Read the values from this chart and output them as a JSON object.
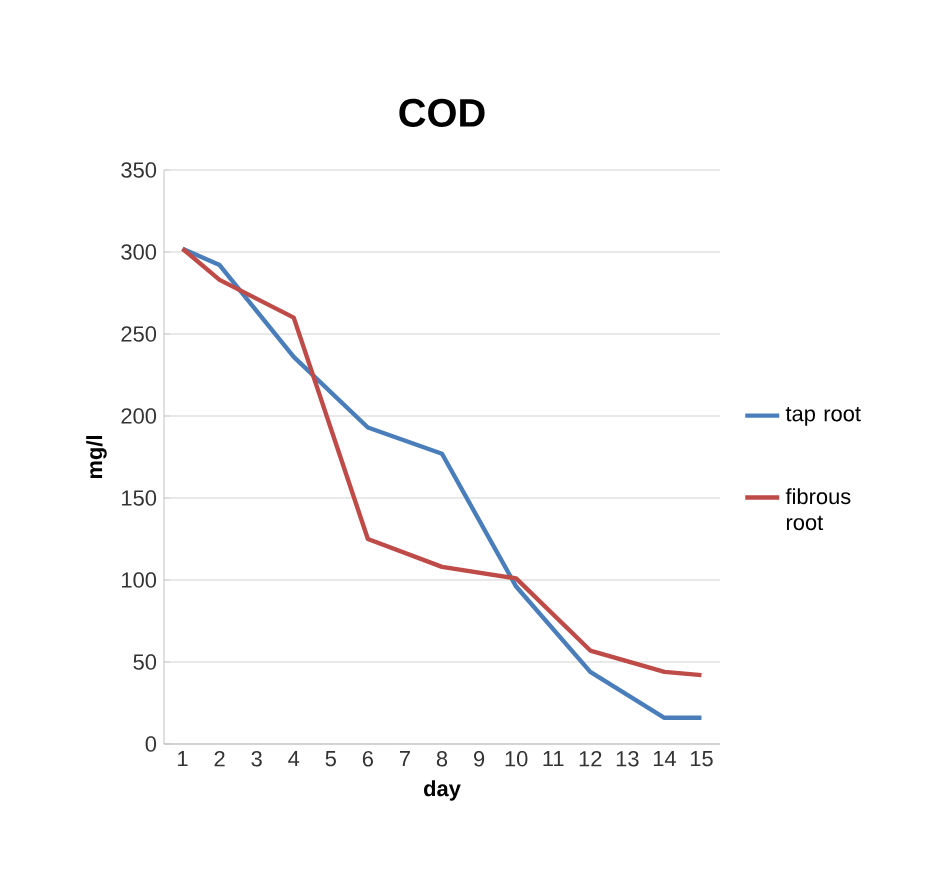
{
  "chart_data": {
    "type": "line",
    "title": "COD",
    "xlabel": "day",
    "ylabel": "mg/l",
    "categories": [
      "1",
      "2",
      "3",
      "4",
      "5",
      "6",
      "7",
      "8",
      "9",
      "10",
      "11",
      "12",
      "13",
      "14",
      "15"
    ],
    "series": [
      {
        "name": "tap root",
        "color": "#4a7ebb",
        "values": [
          302,
          292,
          null,
          236,
          null,
          193,
          null,
          177,
          null,
          96,
          null,
          44,
          null,
          16,
          16
        ]
      },
      {
        "name": "fibrous root",
        "color": "#be4b48",
        "values": [
          302,
          283,
          null,
          260,
          null,
          125,
          null,
          108,
          null,
          101,
          null,
          57,
          null,
          44,
          42
        ]
      }
    ],
    "ylim": [
      0,
      350
    ],
    "yticks": [
      0,
      50,
      100,
      150,
      200,
      250,
      300,
      350
    ],
    "grid": "y",
    "legend": "right",
    "marker": "none",
    "line_style": "solid"
  }
}
